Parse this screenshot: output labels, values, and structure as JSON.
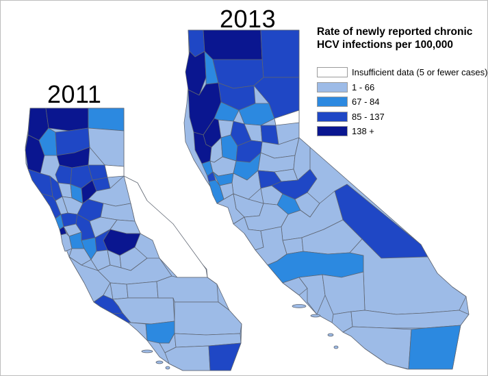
{
  "maps": [
    {
      "year_label": "2011"
    },
    {
      "year_label": "2013"
    }
  ],
  "legend": {
    "title_line1": "Rate of newly reported chronic",
    "title_line2": "HCV infections per 100,000",
    "items": [
      {
        "label": "Insufficient data (5 or fewer cases)",
        "color": "#ffffff"
      },
      {
        "label": "1 - 66",
        "color": "#9dbbe7"
      },
      {
        "label": "67 - 84",
        "color": "#2c89e0"
      },
      {
        "label": "85 - 137",
        "color": "#1f47c5"
      },
      {
        "label": "138 +",
        "color": "#0a1690"
      }
    ]
  },
  "colors": {
    "county_border": "#5d6470",
    "outline": "#9a9a9a"
  }
}
